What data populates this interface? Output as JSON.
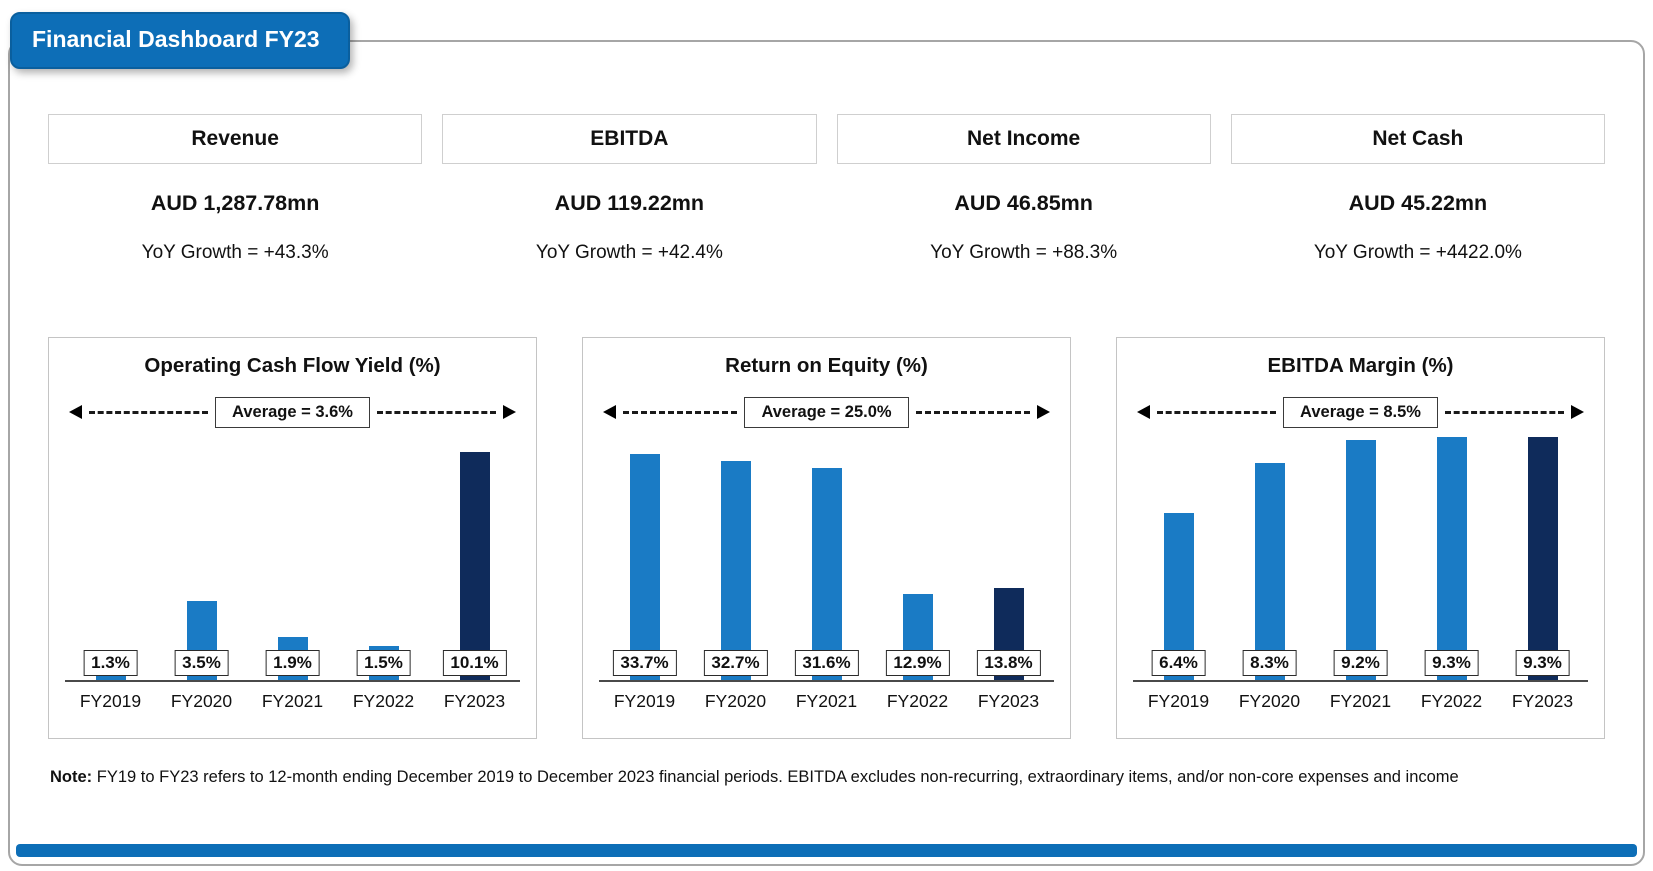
{
  "title": "Financial Dashboard FY23",
  "kpis": [
    {
      "label": "Revenue",
      "value": "AUD 1,287.78mn",
      "growth": "YoY Growth = +43.3%"
    },
    {
      "label": "EBITDA",
      "value": "AUD 119.22mn",
      "growth": "YoY Growth = +42.4%"
    },
    {
      "label": "Net Income",
      "value": "AUD 46.85mn",
      "growth": "YoY Growth = +88.3%"
    },
    {
      "label": "Net Cash",
      "value": "AUD 45.22mn",
      "growth": "YoY Growth = +4422.0%"
    }
  ],
  "chart_data": [
    {
      "type": "bar",
      "title": "Operating Cash Flow Yield (%)",
      "average": 3.6,
      "average_label": "Average = 3.6%",
      "categories": [
        "FY2019",
        "FY2020",
        "FY2021",
        "FY2022",
        "FY2023"
      ],
      "values": [
        1.3,
        3.5,
        1.9,
        1.5,
        10.1
      ],
      "value_labels": [
        "1.3%",
        "3.5%",
        "1.9%",
        "1.5%",
        "10.1%"
      ],
      "ylim": [
        0,
        11
      ],
      "highlight_last": true,
      "legend": "none",
      "grid": false
    },
    {
      "type": "bar",
      "title": "Return on Equity (%)",
      "average": 25.0,
      "average_label": "Average = 25.0%",
      "categories": [
        "FY2019",
        "FY2020",
        "FY2021",
        "FY2022",
        "FY2023"
      ],
      "values": [
        33.7,
        32.7,
        31.6,
        12.9,
        13.8
      ],
      "value_labels": [
        "33.7%",
        "32.7%",
        "31.6%",
        "12.9%",
        "13.8%"
      ],
      "ylim": [
        0,
        37
      ],
      "highlight_last": true,
      "legend": "none",
      "grid": false
    },
    {
      "type": "bar",
      "title": "EBITDA Margin (%)",
      "average": 8.5,
      "average_label": "Average = 8.5%",
      "categories": [
        "FY2019",
        "FY2020",
        "FY2021",
        "FY2022",
        "FY2023"
      ],
      "values": [
        6.4,
        8.3,
        9.2,
        9.3,
        9.3
      ],
      "value_labels": [
        "6.4%",
        "8.3%",
        "9.2%",
        "9.3%",
        "9.3%"
      ],
      "ylim": [
        0,
        9.5
      ],
      "highlight_last": true,
      "legend": "none",
      "grid": false
    }
  ],
  "note": {
    "label": "Note:",
    "text": " FY19 to FY23 refers to 12-month ending  December 2019 to December 2023 financial periods. EBITDA excludes non-recurring, extraordinary items, and/or non-core expenses and income"
  },
  "colors": {
    "accent_blue": "#0d6eb7",
    "bar_primary": "#1a7bc5",
    "bar_highlight": "#0f2b5b",
    "panel_border": "#c4c4c4",
    "outer_border": "#a6a6a6"
  }
}
